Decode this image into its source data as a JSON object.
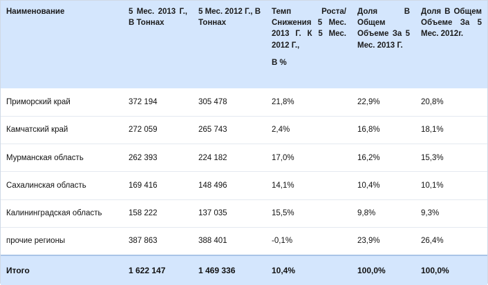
{
  "table": {
    "headers": [
      {
        "text": "Наименование"
      },
      {
        "text": "5 Мес. 2013 Г., В Тоннах"
      },
      {
        "text": "5 Мес. 2012 Г., В Тоннах"
      },
      {
        "text": "Темп Роста/ Снижения 5 Мес. 2013 Г. К 5 Мес. 2012 Г.,",
        "sub": "В %"
      },
      {
        "text": "Доля В Общем Объеме За 5 Мес. 2013 Г."
      },
      {
        "text": "Доля В Общем Объеме За 5 Мес. 2012г."
      }
    ],
    "rows": [
      {
        "name": "Приморский край",
        "v2013": "372 194",
        "v2012": "305 478",
        "growth": "21,8%",
        "share2013": "22,9%",
        "share2012": "20,8%"
      },
      {
        "name": "Камчатский край",
        "v2013": "272 059",
        "v2012": "265 743",
        "growth": "2,4%",
        "share2013": "16,8%",
        "share2012": "18,1%"
      },
      {
        "name": "Мурманская область",
        "v2013": "262 393",
        "v2012": "224 182",
        "growth": "17,0%",
        "share2013": "16,2%",
        "share2012": "15,3%"
      },
      {
        "name": "Сахалинская область",
        "v2013": "169 416",
        "v2012": "148 496",
        "growth": "14,1%",
        "share2013": "10,4%",
        "share2012": "10,1%"
      },
      {
        "name": "Калининградская область",
        "v2013": "158 222",
        "v2012": "137 035",
        "growth": "15,5%",
        "share2013": "9,8%",
        "share2012": "9,3%"
      },
      {
        "name": "прочие регионы",
        "v2013": "387 863",
        "v2012": "388 401",
        "growth": "-0,1%",
        "share2013": "23,9%",
        "share2012": "26,4%"
      }
    ],
    "total": {
      "name": "Итого",
      "v2013": "1 622 147",
      "v2012": "1 469 336",
      "growth": "10,4%",
      "share2013": "100,0%",
      "share2012": "100,0%"
    }
  },
  "colors": {
    "header_bg": "#d4e6fd",
    "row_divider": "#e4e9f0",
    "total_border": "#a9c4e6"
  }
}
